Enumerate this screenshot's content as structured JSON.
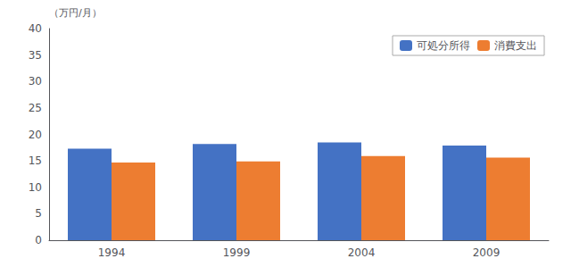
{
  "chart_data": {
    "type": "bar",
    "ylabel": "（万円/月）",
    "categories": [
      "1994",
      "1999",
      "2004",
      "2009"
    ],
    "series": [
      {
        "name": "可処分所得",
        "color": "#4472C4",
        "values": [
          17.3,
          18.2,
          18.5,
          17.9
        ]
      },
      {
        "name": "消費支出",
        "color": "#ED7D31",
        "values": [
          14.7,
          14.9,
          15.9,
          15.6
        ]
      }
    ],
    "ylim": [
      0,
      40
    ],
    "yticks": [
      0,
      5,
      10,
      15,
      20,
      25,
      30,
      35,
      40
    ],
    "grid": false,
    "legend": "upper right"
  }
}
